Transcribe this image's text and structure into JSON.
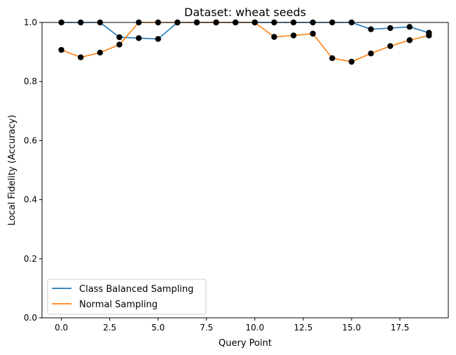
{
  "chart_data": {
    "type": "line",
    "title": "Dataset: wheat seeds",
    "xlabel": "Query Point",
    "ylabel": "Local Fidelity (Accuracy)",
    "xlim": [
      -1,
      20
    ],
    "ylim": [
      0,
      1.0
    ],
    "xticks": [
      0.0,
      2.5,
      5.0,
      7.5,
      10.0,
      12.5,
      15.0,
      17.5
    ],
    "xtick_labels": [
      "0.0",
      "2.5",
      "5.0",
      "7.5",
      "10.0",
      "12.5",
      "15.0",
      "17.5"
    ],
    "yticks": [
      0.0,
      0.2,
      0.4,
      0.6,
      0.8,
      1.0
    ],
    "ytick_labels": [
      "0.0",
      "0.2",
      "0.4",
      "0.6",
      "0.8",
      "1.0"
    ],
    "grid": false,
    "legend_position": "lower-left",
    "x": [
      0,
      1,
      2,
      3,
      4,
      5,
      6,
      7,
      8,
      9,
      10,
      11,
      12,
      13,
      14,
      15,
      16,
      17,
      18,
      19
    ],
    "series": [
      {
        "name": "Class Balanced Sampling",
        "color": "#1f77b4",
        "values": [
          1.0,
          1.0,
          1.0,
          0.95,
          0.947,
          0.944,
          1.0,
          1.0,
          1.0,
          1.0,
          1.0,
          1.0,
          1.0,
          1.0,
          1.0,
          1.0,
          0.977,
          0.981,
          0.985,
          0.965
        ]
      },
      {
        "name": "Normal Sampling",
        "color": "#ff7f0e",
        "values": [
          0.907,
          0.882,
          0.898,
          0.925,
          1.0,
          1.0,
          1.0,
          1.0,
          1.0,
          1.0,
          1.0,
          0.951,
          0.956,
          0.962,
          0.879,
          0.867,
          0.895,
          0.92,
          0.94,
          0.956
        ]
      }
    ],
    "marker_color": "#000000"
  }
}
